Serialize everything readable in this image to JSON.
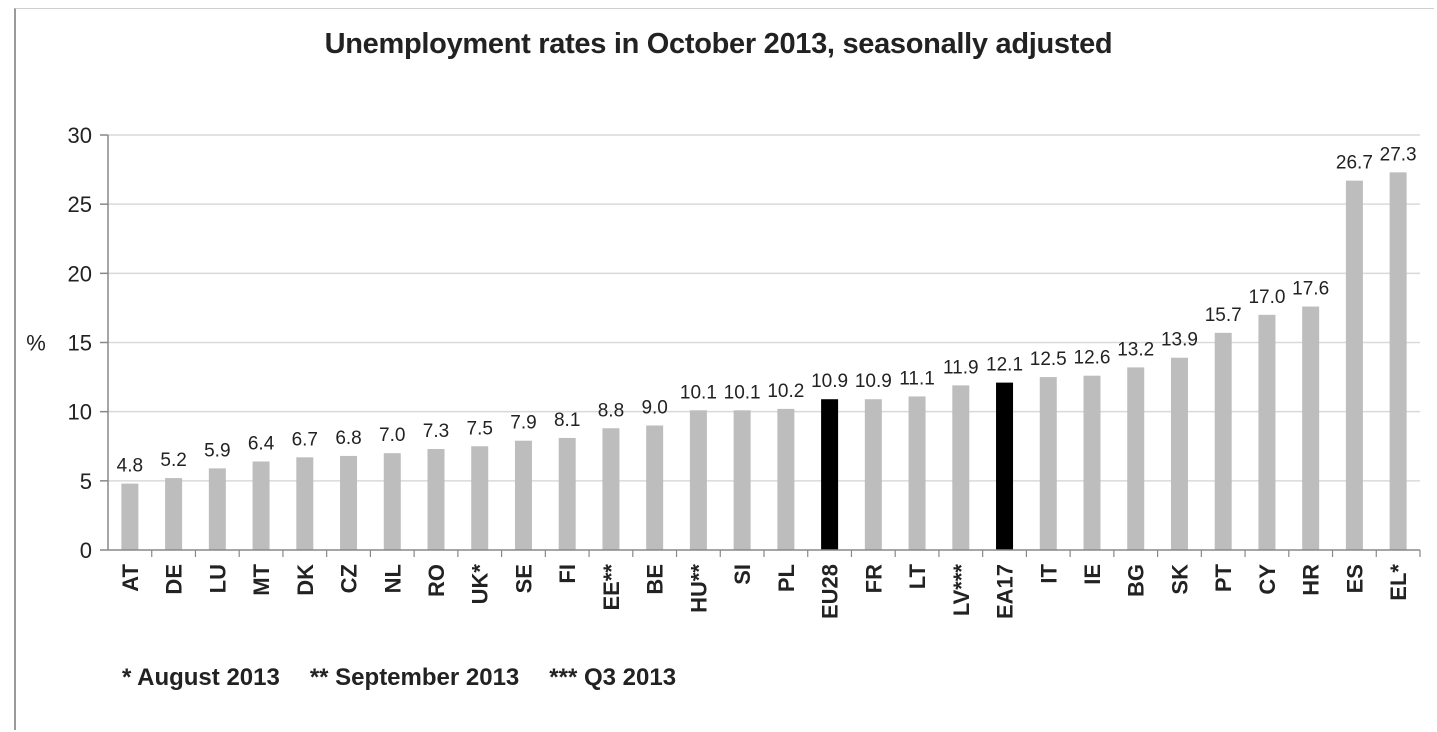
{
  "chart_data": {
    "type": "bar",
    "title": "Unemployment rates in October 2013, seasonally adjusted",
    "ylabel": "%",
    "xlabel": "",
    "ylim": [
      0,
      30
    ],
    "yticks": [
      0,
      5,
      10,
      15,
      20,
      25,
      30
    ],
    "grid": true,
    "categories": [
      "AT",
      "DE",
      "LU",
      "MT",
      "DK",
      "CZ",
      "NL",
      "RO",
      "UK*",
      "SE",
      "FI",
      "EE**",
      "BE",
      "HU**",
      "SI",
      "PL",
      "EU28",
      "FR",
      "LT",
      "LV***",
      "EA17",
      "IT",
      "IE",
      "BG",
      "SK",
      "PT",
      "CY",
      "HR",
      "ES",
      "EL*"
    ],
    "values": [
      4.8,
      5.2,
      5.9,
      6.4,
      6.7,
      6.8,
      7.0,
      7.3,
      7.5,
      7.9,
      8.1,
      8.8,
      9.0,
      10.1,
      10.1,
      10.2,
      10.9,
      10.9,
      11.1,
      11.9,
      12.1,
      12.5,
      12.6,
      13.2,
      13.9,
      15.7,
      17.0,
      17.6,
      26.7,
      27.3
    ],
    "value_labels": [
      "4.8",
      "5.2",
      "5.9",
      "6.4",
      "6.7",
      "6.8",
      "7.0",
      "7.3",
      "7.5",
      "7.9",
      "8.1",
      "8.8",
      "9.0",
      "10.1",
      "10.1",
      "10.2",
      "10.9",
      "10.9",
      "11.1",
      "11.9",
      "12.1",
      "12.5",
      "12.6",
      "13.2",
      "13.9",
      "15.7",
      "17.0",
      "17.6",
      "26.7",
      "27.3"
    ],
    "highlighted": [
      "EU28",
      "EA17"
    ],
    "colors": {
      "bar": "#bdbdbd",
      "highlight": "#000000",
      "grid": "#d9d9d9",
      "axis": "#888888",
      "text": "#222222"
    }
  },
  "footnotes": [
    "* August 2013",
    "** September 2013",
    "*** Q3 2013"
  ]
}
